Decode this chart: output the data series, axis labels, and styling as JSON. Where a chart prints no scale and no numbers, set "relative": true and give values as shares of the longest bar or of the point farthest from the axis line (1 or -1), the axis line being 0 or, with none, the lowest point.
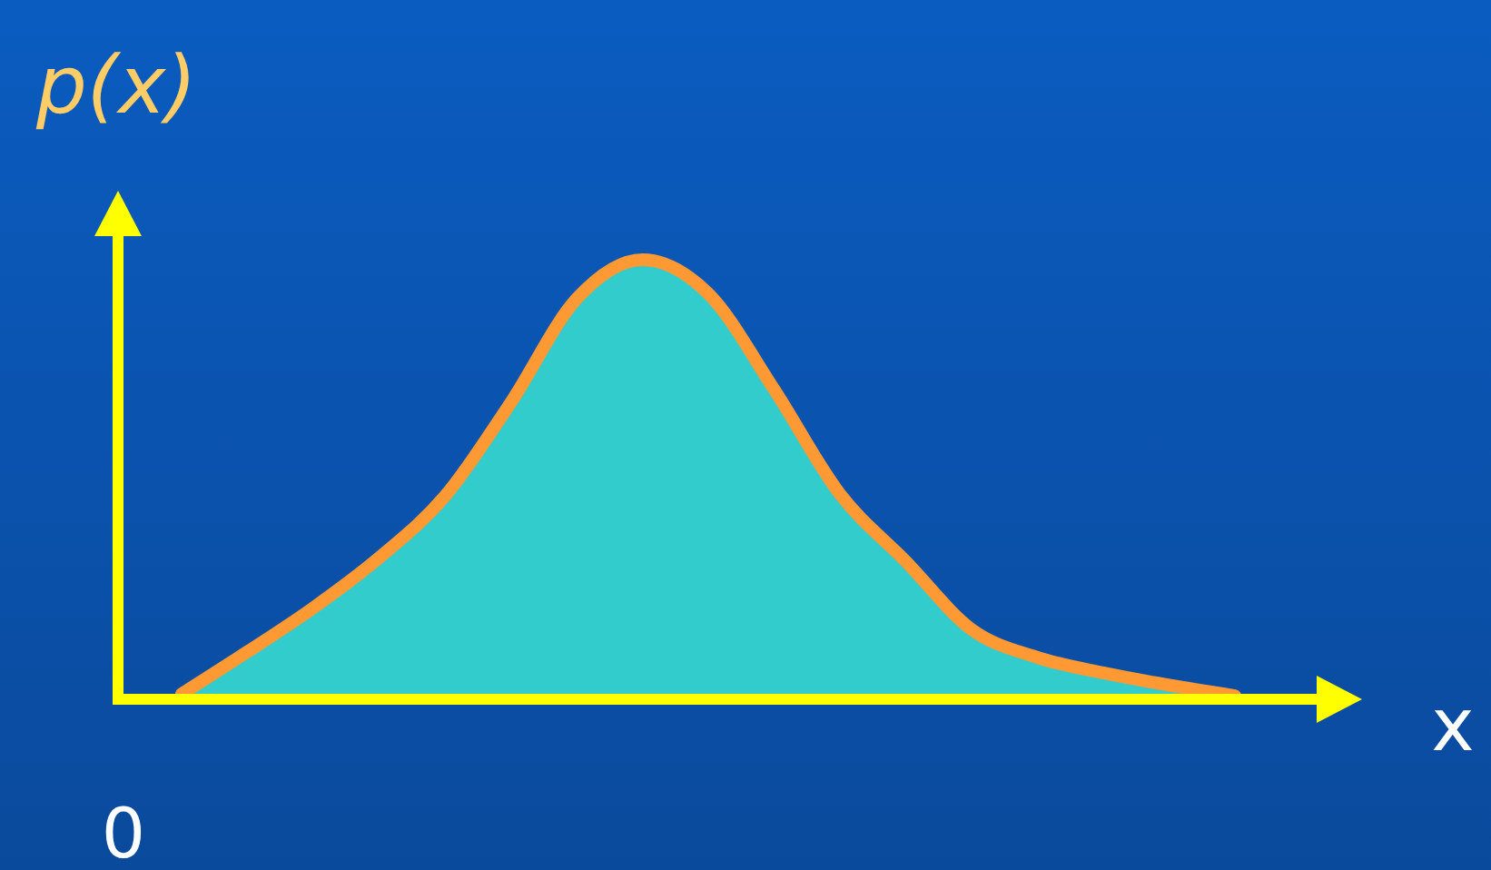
{
  "chart_data": {
    "type": "area",
    "relative": true,
    "ylabel": "p(x)",
    "xlabel": "x",
    "annotations": [
      "0"
    ],
    "categories": [
      null,
      null,
      null,
      null,
      null,
      null,
      null,
      null,
      null,
      null,
      null,
      null,
      null,
      null,
      null,
      null,
      null
    ],
    "series": [
      {
        "color": "#33cccc",
        "values": [
          0.012,
          0.108,
          0.208,
          0.322,
          0.462,
          0.675,
          0.911,
          1,
          0.923,
          0.705,
          0.467,
          0.314,
          0.159,
          0.095,
          0.06,
          0.032,
          0.008
        ]
      },
      {
        "type": "line",
        "color": "#ff9933",
        "values": [
          0.012,
          0.108,
          0.208,
          0.322,
          0.462,
          0.675,
          0.911,
          1,
          0.923,
          0.705,
          0.467,
          0.314,
          0.159,
          0.095,
          0.06,
          0.032,
          0.008
        ]
      }
    ]
  }
}
